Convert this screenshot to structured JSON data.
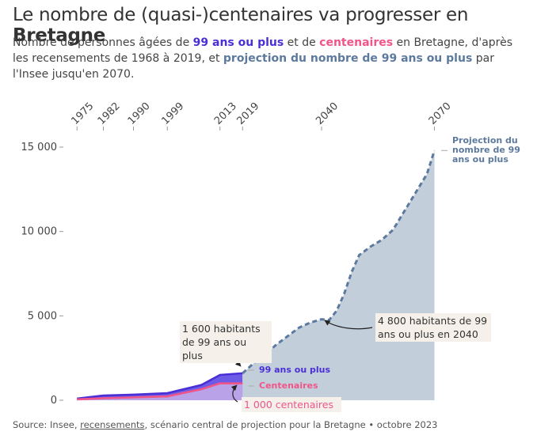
{
  "chart_data": {
    "type": "line",
    "title": [
      {
        "text": "Le nombre de (quasi-)centenaires va progresser en "
      },
      {
        "text": "Bretagne",
        "bold": true
      }
    ],
    "subtitle": [
      {
        "text": "Nombre de personnes âgées de "
      },
      {
        "text": "99 ans ou plus",
        "bold": true,
        "color": "#4b2fd6"
      },
      {
        "text": " et de "
      },
      {
        "text": "centenaires",
        "bold": true,
        "color": "#f0558a"
      },
      {
        "text": " en Bretagne, d'après les recensements de 1968 à 2019, et "
      },
      {
        "text": "projection du nombre de 99 ans ou plus",
        "bold": true,
        "color": "#5d7a9e"
      },
      {
        "text": " par l'Insee jusqu'en 2070."
      }
    ],
    "source": [
      {
        "text": "Source: Insee, "
      },
      {
        "text": "recensements",
        "underline": true
      },
      {
        "text": ", scénario central de projection pour la Bretagne • octobre 2023"
      }
    ],
    "xlim": [
      1972,
      2072
    ],
    "xticks": [
      1975,
      1982,
      1990,
      1999,
      2013,
      2019,
      2040,
      2070
    ],
    "ylim": [
      0,
      15000
    ],
    "yticks": [
      {
        "value": 0,
        "label": "0"
      },
      {
        "value": 5000,
        "label": "5 000"
      },
      {
        "value": 10000,
        "label": "10 000"
      },
      {
        "value": 15000,
        "label": "15 000"
      }
    ],
    "series": [
      {
        "name": "99 ans ou plus",
        "color": "#4b2fd6",
        "area": "#6b5be6",
        "x": [
          1975,
          1982,
          1990,
          1999,
          2008,
          2013,
          2019
        ],
        "values": [
          100,
          280,
          330,
          420,
          900,
          1500,
          1600
        ]
      },
      {
        "name": "Centenaires",
        "color": "#f0558a",
        "area": "#b9a2e8",
        "x": [
          1975,
          1982,
          1990,
          1999,
          2008,
          2013,
          2019
        ],
        "values": [
          50,
          120,
          170,
          230,
          650,
          1000,
          1000
        ]
      },
      {
        "name": "Projection du nombre de 99 ans ou plus",
        "color": "#5d7a9e",
        "area": "#c3cedb",
        "dashed": true,
        "x": [
          2019,
          2022,
          2025,
          2028,
          2031,
          2034,
          2037,
          2040,
          2042,
          2044,
          2046,
          2048,
          2050,
          2053,
          2056,
          2059,
          2062,
          2065,
          2068,
          2070
        ],
        "values": [
          1600,
          2200,
          2700,
          3300,
          3800,
          4300,
          4600,
          4800,
          4750,
          5300,
          6300,
          7600,
          8600,
          9100,
          9500,
          10100,
          11200,
          12300,
          13400,
          14800
        ]
      }
    ],
    "annotations": [
      {
        "text": "1 600 habitants de 99 ans ou plus"
      },
      {
        "text": "4 800 habitants de 99 ans ou plus en 2040"
      },
      {
        "text": "1 000 centenaires",
        "color": "#f0558a"
      }
    ]
  }
}
